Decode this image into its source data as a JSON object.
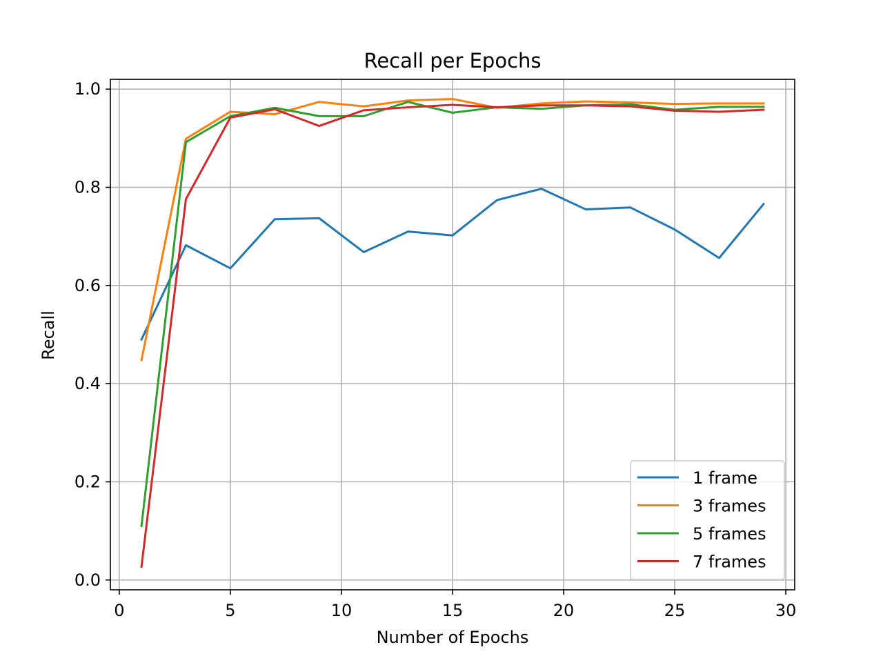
{
  "chart_data": {
    "type": "line",
    "title": "Recall per Epochs",
    "xlabel": "Number of Epochs",
    "ylabel": "Recall",
    "xlim": [
      -0.4,
      30.4
    ],
    "ylim": [
      -0.02,
      1.02
    ],
    "xticks": [
      0,
      5,
      10,
      15,
      20,
      25,
      30
    ],
    "xtick_labels": [
      "0",
      "5",
      "10",
      "15",
      "20",
      "25",
      "30"
    ],
    "yticks": [
      0.0,
      0.2,
      0.4,
      0.6,
      0.8,
      1.0
    ],
    "ytick_labels": [
      "0.0",
      "0.2",
      "0.4",
      "0.6",
      "0.8",
      "1.0"
    ],
    "grid": true,
    "legend_position": "lower-right",
    "x": [
      1,
      3,
      5,
      7,
      9,
      11,
      13,
      15,
      17,
      19,
      21,
      23,
      25,
      27,
      29
    ],
    "series": [
      {
        "name": "1 frame",
        "color": "#1f77b4",
        "values": [
          0.49,
          0.682,
          0.635,
          0.735,
          0.737,
          0.668,
          0.71,
          0.702,
          0.774,
          0.797,
          0.755,
          0.759,
          0.714,
          0.656,
          0.766
        ]
      },
      {
        "name": "3 frames",
        "color": "#ff7f0e",
        "values": [
          0.448,
          0.899,
          0.954,
          0.949,
          0.974,
          0.965,
          0.977,
          0.98,
          0.962,
          0.971,
          0.975,
          0.973,
          0.97,
          0.971,
          0.971
        ]
      },
      {
        "name": "5 frames",
        "color": "#2ca02c",
        "values": [
          0.11,
          0.892,
          0.945,
          0.962,
          0.945,
          0.945,
          0.974,
          0.952,
          0.963,
          0.96,
          0.967,
          0.969,
          0.958,
          0.964,
          0.964
        ]
      },
      {
        "name": "7 frames",
        "color": "#d62728",
        "values": [
          0.027,
          0.776,
          0.942,
          0.959,
          0.925,
          0.957,
          0.963,
          0.968,
          0.963,
          0.967,
          0.967,
          0.965,
          0.956,
          0.954,
          0.958
        ]
      }
    ]
  }
}
